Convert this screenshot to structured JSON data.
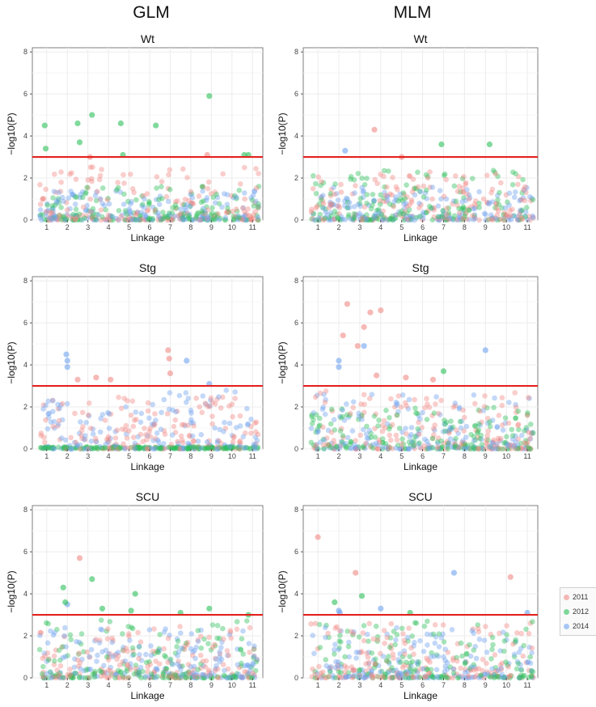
{
  "column_titles": {
    "glm": "GLM",
    "mlm": "MLM"
  },
  "legend": [
    {
      "label": "2011",
      "color": "#f08b86"
    },
    {
      "label": "2012",
      "color": "#2dbf5a"
    },
    {
      "label": "2014",
      "color": "#6fa3ef"
    }
  ],
  "chart_data": [
    {
      "type": "scatter",
      "method": "GLM",
      "title": "Wt",
      "xlabel": "Linkage",
      "ylabel": "−log10(P)",
      "ylim": [
        0,
        8.2
      ],
      "yticks": [
        0,
        2,
        4,
        6,
        8
      ],
      "categories": [
        "1",
        "2",
        "3",
        "4",
        "5",
        "6",
        "7",
        "8",
        "9",
        "10",
        "11"
      ],
      "threshold": 3,
      "highlights": [
        {
          "x": 0.9,
          "y": 4.5,
          "series": "2012"
        },
        {
          "x": 0.95,
          "y": 3.4,
          "series": "2012"
        },
        {
          "x": 2.5,
          "y": 4.6,
          "series": "2012"
        },
        {
          "x": 2.6,
          "y": 3.7,
          "series": "2012"
        },
        {
          "x": 3.2,
          "y": 5.0,
          "series": "2012"
        },
        {
          "x": 4.6,
          "y": 4.6,
          "series": "2012"
        },
        {
          "x": 4.7,
          "y": 3.1,
          "series": "2012"
        },
        {
          "x": 6.3,
          "y": 4.5,
          "series": "2012"
        },
        {
          "x": 8.9,
          "y": 5.9,
          "series": "2012"
        },
        {
          "x": 10.8,
          "y": 3.1,
          "series": "2012"
        },
        {
          "x": 10.6,
          "y": 3.1,
          "series": "2012"
        },
        {
          "x": 8.8,
          "y": 3.1,
          "series": "2011"
        },
        {
          "x": 3.1,
          "y": 3.0,
          "series": "2011"
        }
      ],
      "bg_max": [
        2.6,
        1.6,
        1.4
      ]
    },
    {
      "type": "scatter",
      "method": "MLM",
      "title": "Wt",
      "xlabel": "Linkage",
      "ylabel": "−log10(P)",
      "ylim": [
        0,
        8.2
      ],
      "yticks": [
        0,
        2,
        4,
        6,
        8
      ],
      "categories": [
        "1",
        "2",
        "3",
        "4",
        "5",
        "6",
        "7",
        "8",
        "9",
        "10",
        "11"
      ],
      "threshold": 3,
      "highlights": [
        {
          "x": 3.7,
          "y": 4.3,
          "series": "2011"
        },
        {
          "x": 2.3,
          "y": 3.3,
          "series": "2014"
        },
        {
          "x": 6.9,
          "y": 3.6,
          "series": "2012"
        },
        {
          "x": 9.2,
          "y": 3.6,
          "series": "2012"
        },
        {
          "x": 5.0,
          "y": 3.0,
          "series": "2011"
        }
      ],
      "bg_max": [
        2.3,
        2.4,
        1.6
      ]
    },
    {
      "type": "scatter",
      "method": "GLM",
      "title": "Stg",
      "xlabel": "Linkage",
      "ylabel": "−log10(P)",
      "ylim": [
        0,
        8.2
      ],
      "yticks": [
        0,
        2,
        4,
        6,
        8
      ],
      "categories": [
        "1",
        "2",
        "3",
        "4",
        "5",
        "6",
        "7",
        "8",
        "9",
        "10",
        "11"
      ],
      "threshold": 3,
      "highlights": [
        {
          "x": 1.95,
          "y": 4.5,
          "series": "2014"
        },
        {
          "x": 2.0,
          "y": 4.2,
          "series": "2014"
        },
        {
          "x": 2.0,
          "y": 3.9,
          "series": "2014"
        },
        {
          "x": 6.9,
          "y": 4.7,
          "series": "2011"
        },
        {
          "x": 6.95,
          "y": 4.3,
          "series": "2011"
        },
        {
          "x": 7.0,
          "y": 3.6,
          "series": "2011"
        },
        {
          "x": 7.8,
          "y": 4.2,
          "series": "2014"
        },
        {
          "x": 3.4,
          "y": 3.4,
          "series": "2011"
        },
        {
          "x": 4.1,
          "y": 3.3,
          "series": "2011"
        },
        {
          "x": 2.5,
          "y": 3.3,
          "series": "2011"
        },
        {
          "x": 8.9,
          "y": 3.1,
          "series": "2014"
        }
      ],
      "bg_max": [
        2.5,
        0.1,
        2.8
      ]
    },
    {
      "type": "scatter",
      "method": "MLM",
      "title": "Stg",
      "xlabel": "Linkage",
      "ylabel": "−log10(P)",
      "ylim": [
        0,
        8.2
      ],
      "yticks": [
        0,
        2,
        4,
        6,
        8
      ],
      "categories": [
        "1",
        "2",
        "3",
        "4",
        "5",
        "6",
        "7",
        "8",
        "9",
        "10",
        "11"
      ],
      "threshold": 3,
      "highlights": [
        {
          "x": 2.4,
          "y": 6.9,
          "series": "2011"
        },
        {
          "x": 4.0,
          "y": 6.6,
          "series": "2011"
        },
        {
          "x": 3.5,
          "y": 6.5,
          "series": "2011"
        },
        {
          "x": 3.2,
          "y": 5.8,
          "series": "2011"
        },
        {
          "x": 2.2,
          "y": 5.4,
          "series": "2011"
        },
        {
          "x": 2.9,
          "y": 4.9,
          "series": "2011"
        },
        {
          "x": 3.2,
          "y": 4.9,
          "series": "2014"
        },
        {
          "x": 2.0,
          "y": 4.2,
          "series": "2014"
        },
        {
          "x": 2.0,
          "y": 3.9,
          "series": "2014"
        },
        {
          "x": 9.0,
          "y": 4.7,
          "series": "2014"
        },
        {
          "x": 7.0,
          "y": 3.7,
          "series": "2012"
        },
        {
          "x": 5.2,
          "y": 3.4,
          "series": "2011"
        },
        {
          "x": 3.8,
          "y": 3.5,
          "series": "2011"
        },
        {
          "x": 6.5,
          "y": 3.3,
          "series": "2011"
        }
      ],
      "bg_max": [
        2.9,
        2.0,
        2.6
      ]
    },
    {
      "type": "scatter",
      "method": "GLM",
      "title": "SCU",
      "xlabel": "Linkage",
      "ylabel": "−log10(P)",
      "ylim": [
        0,
        8.2
      ],
      "yticks": [
        0,
        2,
        4,
        6,
        8
      ],
      "categories": [
        "1",
        "2",
        "3",
        "4",
        "5",
        "6",
        "7",
        "8",
        "9",
        "10",
        "11"
      ],
      "threshold": 3,
      "highlights": [
        {
          "x": 2.6,
          "y": 5.7,
          "series": "2011"
        },
        {
          "x": 3.2,
          "y": 4.7,
          "series": "2012"
        },
        {
          "x": 1.8,
          "y": 4.3,
          "series": "2012"
        },
        {
          "x": 5.3,
          "y": 4.0,
          "series": "2012"
        },
        {
          "x": 2.0,
          "y": 3.5,
          "series": "2014"
        },
        {
          "x": 1.9,
          "y": 3.6,
          "series": "2012"
        },
        {
          "x": 3.7,
          "y": 3.3,
          "series": "2012"
        },
        {
          "x": 5.1,
          "y": 3.2,
          "series": "2012"
        },
        {
          "x": 8.9,
          "y": 3.3,
          "series": "2012"
        },
        {
          "x": 10.8,
          "y": 3.0,
          "series": "2012"
        },
        {
          "x": 7.5,
          "y": 3.1,
          "series": "2012"
        }
      ],
      "bg_max": [
        2.5,
        2.8,
        2.4
      ]
    },
    {
      "type": "scatter",
      "method": "MLM",
      "title": "SCU",
      "xlabel": "Linkage",
      "ylabel": "−log10(P)",
      "ylim": [
        0,
        8.2
      ],
      "yticks": [
        0,
        2,
        4,
        6,
        8
      ],
      "categories": [
        "1",
        "2",
        "3",
        "4",
        "5",
        "6",
        "7",
        "8",
        "9",
        "10",
        "11"
      ],
      "threshold": 3,
      "highlights": [
        {
          "x": 1.0,
          "y": 6.7,
          "series": "2011"
        },
        {
          "x": 2.8,
          "y": 5.0,
          "series": "2011"
        },
        {
          "x": 7.5,
          "y": 5.0,
          "series": "2014"
        },
        {
          "x": 10.2,
          "y": 4.8,
          "series": "2011"
        },
        {
          "x": 3.1,
          "y": 3.9,
          "series": "2012"
        },
        {
          "x": 1.8,
          "y": 3.6,
          "series": "2012"
        },
        {
          "x": 2.0,
          "y": 3.2,
          "series": "2014"
        },
        {
          "x": 2.05,
          "y": 3.1,
          "series": "2014"
        },
        {
          "x": 4.0,
          "y": 3.3,
          "series": "2014"
        },
        {
          "x": 5.4,
          "y": 3.1,
          "series": "2012"
        },
        {
          "x": 11.0,
          "y": 3.1,
          "series": "2014"
        }
      ],
      "bg_max": [
        2.6,
        2.7,
        2.5
      ]
    }
  ]
}
